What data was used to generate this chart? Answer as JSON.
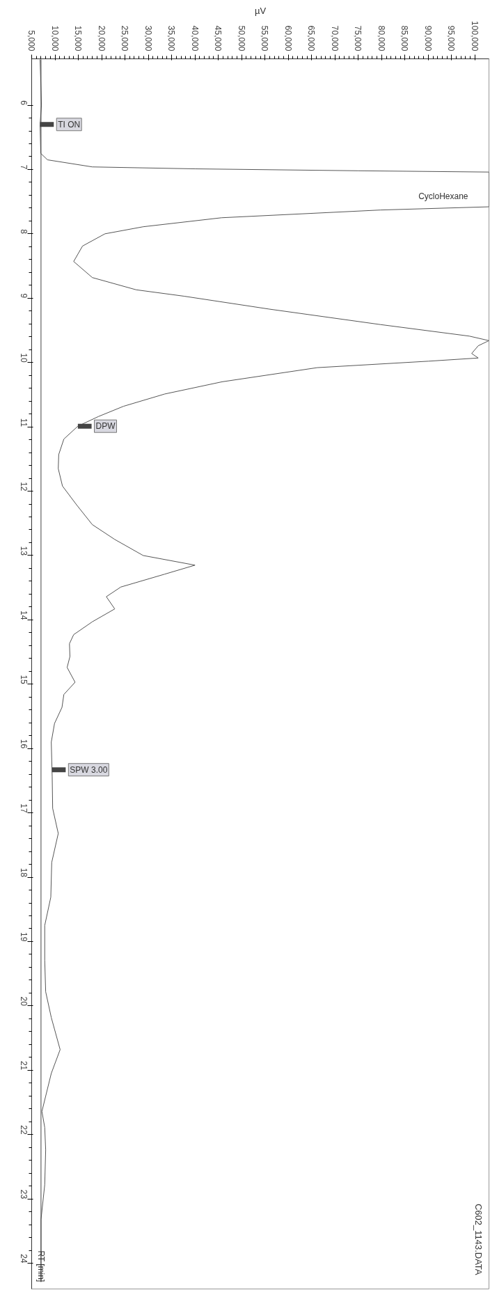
{
  "chart_data": {
    "type": "line",
    "xlabel": "µV",
    "ylabel": "RT [min]",
    "x": [
      6800,
      7100,
      6800,
      6950,
      8400,
      18000,
      40000,
      75000,
      103000,
      103000,
      79700,
      45700,
      28900,
      20700,
      15900,
      14000,
      18000,
      27400,
      37700,
      55900,
      79700,
      98800,
      103000,
      100700,
      99300,
      100700,
      90000,
      66200,
      45800,
      33500,
      24700,
      19300,
      14900,
      11900,
      10800,
      10700,
      11600,
      14600,
      18000,
      22800,
      28900,
      40000,
      33500,
      24100,
      21000,
      22800,
      18000,
      14000,
      13100,
      13200,
      12600,
      14300,
      11900,
      11500,
      9900,
      9200,
      9400,
      9500,
      10700,
      9300,
      9100,
      7800,
      7800,
      8000,
      9200,
      11100,
      9200,
      7200,
      7800,
      8000,
      7800,
      7000,
      7000
    ],
    "series": [
      {
        "color": "#555555",
        "values": [
          5.29,
          6.0,
          6.3,
          6.75,
          6.85,
          6.96,
          6.99,
          7.02,
          7.04,
          7.58,
          7.63,
          7.75,
          7.89,
          8.0,
          8.19,
          8.43,
          8.68,
          8.87,
          8.97,
          9.17,
          9.41,
          9.59,
          9.66,
          9.74,
          9.86,
          9.93,
          9.98,
          10.08,
          10.3,
          10.49,
          10.68,
          10.84,
          10.99,
          11.19,
          11.43,
          11.65,
          11.92,
          12.21,
          12.52,
          12.75,
          13.0,
          13.15,
          13.29,
          13.49,
          13.64,
          13.83,
          14.03,
          14.23,
          14.37,
          14.57,
          14.74,
          14.97,
          15.16,
          15.36,
          15.61,
          15.9,
          16.44,
          16.93,
          17.32,
          17.77,
          18.31,
          18.75,
          19.29,
          19.78,
          20.18,
          20.68,
          21.05,
          21.64,
          21.89,
          22.24,
          22.78,
          23.32,
          24.29
        ]
      },
      {
        "type": "line",
        "color": "#444444",
        "x": [
          7000,
          7000
        ],
        "values": [
          5.29,
          24.29
        ]
      }
    ],
    "xlim": [
      5000,
      103000
    ],
    "ylim": [
      24.4,
      5.28
    ],
    "yticks": [
      6,
      7,
      8,
      9,
      10,
      11,
      12,
      13,
      14,
      15,
      16,
      17,
      18,
      19,
      20,
      21,
      22,
      23,
      24
    ],
    "xticks": [
      {
        "value": 5000,
        "label": "5,000"
      },
      {
        "value": 10000,
        "label": "10,000"
      },
      {
        "value": 15000,
        "label": "15,000"
      },
      {
        "value": 20000,
        "label": "20,000"
      },
      {
        "value": 25000,
        "label": "25,000"
      },
      {
        "value": 30000,
        "label": "30,000"
      },
      {
        "value": 35000,
        "label": "35,000"
      },
      {
        "value": 40000,
        "label": "40,000"
      },
      {
        "value": 45000,
        "label": "45,000"
      },
      {
        "value": 50000,
        "label": "50,000"
      },
      {
        "value": 55000,
        "label": "55,000"
      },
      {
        "value": 60000,
        "label": "60,000"
      },
      {
        "value": 65000,
        "label": "65,000"
      },
      {
        "value": 70000,
        "label": "70,000"
      },
      {
        "value": 75000,
        "label": "75,000"
      },
      {
        "value": 80000,
        "label": "80,000"
      },
      {
        "value": 85000,
        "label": "85,000"
      },
      {
        "value": 90000,
        "label": "90,000"
      },
      {
        "value": 95000,
        "label": "95,000"
      },
      {
        "value": 100000,
        "label": "100,000"
      }
    ],
    "annotations": [
      {
        "text": "TI ON",
        "x": 6800,
        "y": 6.3
      },
      {
        "text": "CycloHexane",
        "x": 103000,
        "y": 7.58
      },
      {
        "text": "DPW",
        "x": 14900,
        "y": 10.99
      },
      {
        "text": "SPW 3.00",
        "x": 9350,
        "y": 16.33
      },
      "C602_1143.DATA"
    ],
    "grid": false,
    "marker": "none",
    "line_style": "solid"
  }
}
